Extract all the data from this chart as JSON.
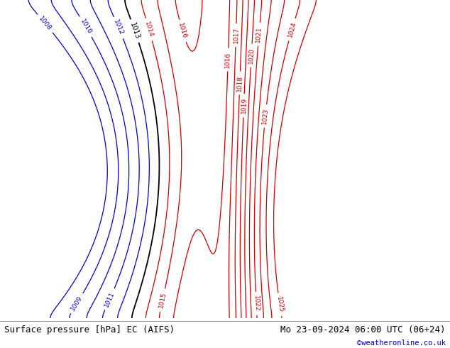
{
  "title_left": "Surface pressure [hPa] EC (AIFS)",
  "title_right": "Mo 23-09-2024 06:00 UTC (06+24)",
  "credit": "©weatheronline.co.uk",
  "bg_color": "#d0d0d0",
  "land_color": "#c8e8b8",
  "lake_color": "#d0d0d0",
  "contour_blue": "#0000cc",
  "contour_black": "#000000",
  "contour_red": "#cc0000",
  "coast_color": "#333333",
  "footer_bg": "#ffffff",
  "footer_text_color": "#000000",
  "credit_color": "#0000cc",
  "font_size_footer": 9,
  "fig_width": 6.34,
  "fig_height": 4.9,
  "dpi": 100,
  "lon_min": -12,
  "lon_max": 42,
  "lat_min": 49,
  "lat_max": 73,
  "isobar_low_levels": [
    1008,
    1009,
    1010,
    1011,
    1012
  ],
  "isobar_mid_levels": [
    1013
  ],
  "isobar_high_levels": [
    1014,
    1015,
    1016,
    1017,
    1018,
    1019,
    1020,
    1021,
    1022,
    1023,
    1024,
    1025
  ]
}
